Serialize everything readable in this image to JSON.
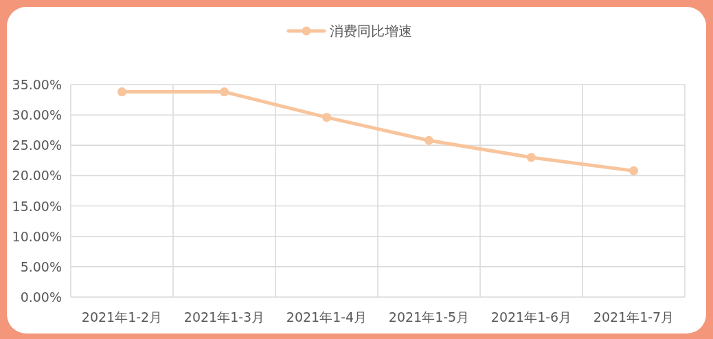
{
  "chart_data": {
    "type": "line",
    "categories": [
      "2021年1-2月",
      "2021年1-3月",
      "2021年1-4月",
      "2021年1-5月",
      "2021年1-6月",
      "2021年1-7月"
    ],
    "series": [
      {
        "name": "消费同比增速",
        "color": "#f8c49c",
        "values": [
          33.8,
          33.8,
          29.6,
          25.8,
          23.0,
          20.8
        ]
      }
    ],
    "ylim": [
      0,
      35
    ],
    "yticks": [
      {
        "value": 0,
        "label": "0.00%"
      },
      {
        "value": 5,
        "label": "5.00%"
      },
      {
        "value": 10,
        "label": "10.00%"
      },
      {
        "value": 15,
        "label": "15.00%"
      },
      {
        "value": 20,
        "label": "20.00%"
      },
      {
        "value": 25,
        "label": "25.00%"
      },
      {
        "value": 30,
        "label": "30.00%"
      },
      {
        "value": 35,
        "label": "35.00%"
      }
    ],
    "grid": true,
    "legend": "top",
    "marker": "circle",
    "line_style": "solid"
  }
}
